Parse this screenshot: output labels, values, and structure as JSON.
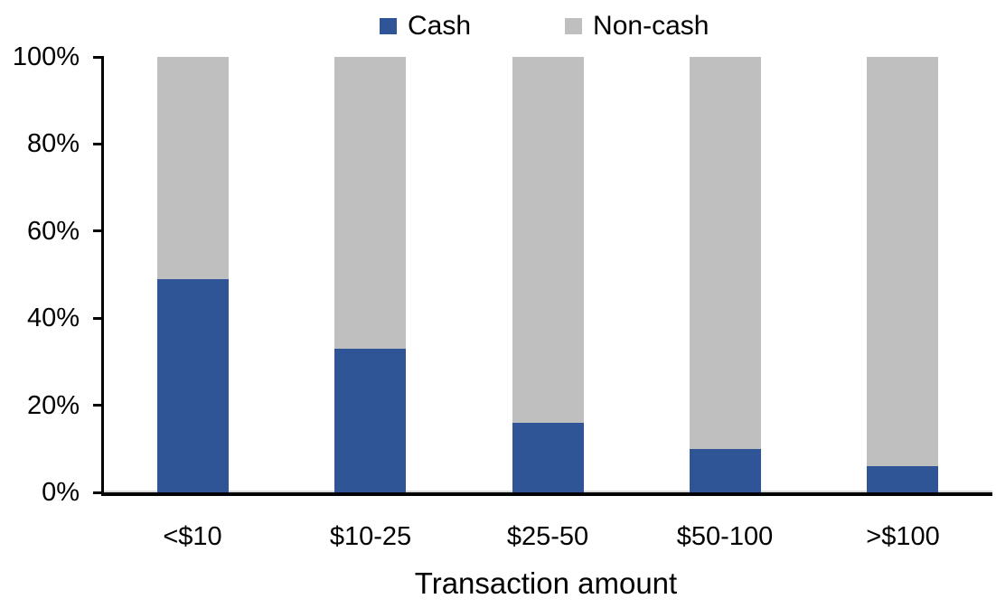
{
  "chart_data": {
    "type": "bar",
    "stacked": true,
    "title": "",
    "xlabel": "Transaction amount",
    "ylabel": "",
    "categories": [
      "<$10",
      "$10-25",
      "$25-50",
      "$50-100",
      ">$100"
    ],
    "series": [
      {
        "name": "Cash",
        "color": "#2F5597",
        "values": [
          49,
          33,
          16,
          10,
          6
        ]
      },
      {
        "name": "Non-cash",
        "color": "#BFBFBF",
        "values": [
          51,
          67,
          84,
          90,
          94
        ]
      }
    ],
    "ylim": [
      0,
      100
    ],
    "yticks": [
      0,
      20,
      40,
      60,
      80,
      100
    ],
    "ytick_labels": [
      "0%",
      "20%",
      "40%",
      "60%",
      "80%",
      "100%"
    ],
    "grid": false,
    "legend_position": "top-center",
    "axis_color": "#000000",
    "text_color": "#000000",
    "background_color": "#FFFFFF"
  }
}
